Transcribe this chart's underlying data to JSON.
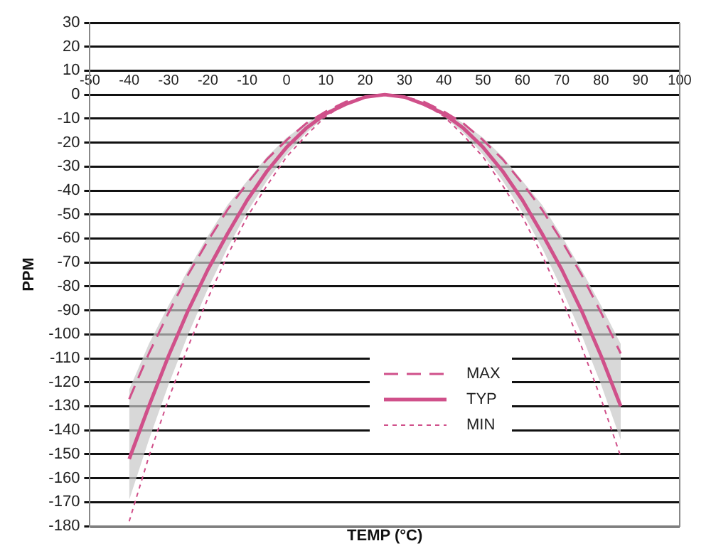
{
  "chart_data": {
    "type": "line",
    "xlabel": "TEMP (°C)",
    "ylabel": "PPM",
    "x": [
      -40,
      -35,
      -30,
      -25,
      -20,
      -15,
      -10,
      -5,
      0,
      5,
      10,
      15,
      20,
      25,
      30,
      35,
      40,
      45,
      50,
      55,
      60,
      65,
      70,
      75,
      80,
      85
    ],
    "series": [
      {
        "name": "MAX",
        "color": "#d0508a",
        "line_style": "dashed",
        "values": [
          -127,
          -108,
          -91,
          -75,
          -61,
          -48,
          -37,
          -27,
          -19,
          -12,
          -7,
          -3,
          -1,
          0,
          -1,
          -3,
          -7,
          -12,
          -19,
          -27,
          -37,
          -48,
          -61,
          -75,
          -91,
          -108
        ]
      },
      {
        "name": "TYP",
        "color": "#d0508a",
        "line_style": "solid",
        "values": [
          -152,
          -130,
          -109,
          -90,
          -73,
          -58,
          -44,
          -32,
          -22,
          -14,
          -8,
          -4,
          -1,
          0,
          -1,
          -4,
          -8,
          -14,
          -22,
          -32,
          -44,
          -58,
          -73,
          -90,
          -109,
          -130
        ],
        "lower": [
          -169,
          -144,
          -121,
          -100,
          -81,
          -64,
          -49,
          -36,
          -25,
          -16,
          -9,
          -4,
          -1,
          0,
          -1,
          -4,
          -9,
          -16,
          -25,
          -36,
          -49,
          -64,
          -81,
          -100,
          -121,
          -144
        ],
        "upper": [
          -123,
          -104,
          -88,
          -73,
          -59,
          -46,
          -36,
          -26,
          -18,
          -12,
          -7,
          -3,
          -1,
          0,
          -1,
          -3,
          -7,
          -12,
          -18,
          -26,
          -36,
          -46,
          -59,
          -73,
          -88,
          -104
        ]
      },
      {
        "name": "MIN",
        "color": "#d0508a",
        "line_style": "dotted",
        "values": [
          -178,
          -151,
          -127,
          -105,
          -85,
          -67,
          -51,
          -38,
          -26,
          -17,
          -9,
          -4,
          -1,
          0,
          -1,
          -4,
          -9,
          -17,
          -26,
          -38,
          -51,
          -67,
          -85,
          -105,
          -127,
          -151
        ]
      }
    ],
    "xlim": [
      -50,
      100
    ],
    "xticks": [
      -50,
      -40,
      -30,
      -20,
      -10,
      0,
      10,
      20,
      30,
      40,
      50,
      60,
      70,
      80,
      90,
      100
    ],
    "ylim": [
      -180,
      30
    ],
    "yticks": [
      30,
      20,
      10,
      0,
      -10,
      -20,
      -30,
      -40,
      -50,
      -60,
      -70,
      -80,
      -90,
      -100,
      -110,
      -120,
      -130,
      -140,
      -150,
      -160,
      -170,
      -180
    ],
    "grid": "y",
    "legend": "bottom",
    "marker": "none"
  }
}
